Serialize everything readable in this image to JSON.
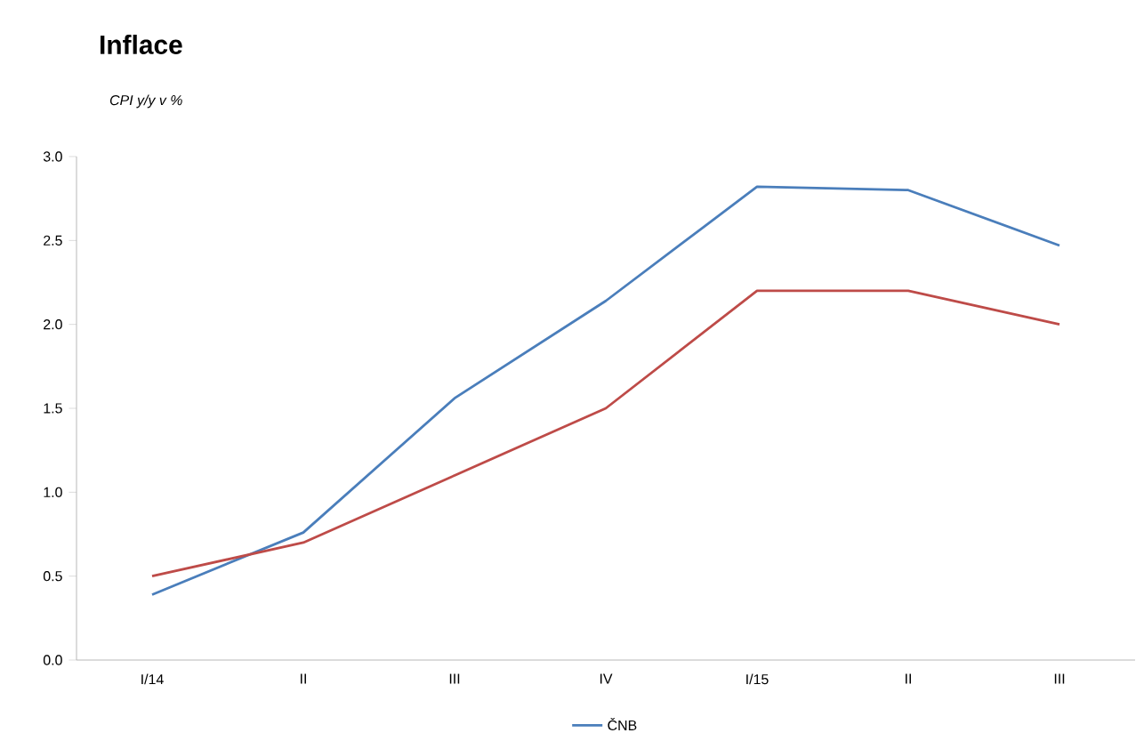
{
  "chart_data": {
    "type": "line",
    "title": "Inflace",
    "subtitle": "CPI y/y v %",
    "categories": [
      "I/14",
      "II",
      "III",
      "IV",
      "I/15",
      "II",
      "III"
    ],
    "series": [
      {
        "name": "ČNB",
        "color": "#4a7ebb",
        "values": [
          0.39,
          0.76,
          1.56,
          2.14,
          2.82,
          2.8,
          2.47
        ]
      },
      {
        "color": "#be4b48",
        "values": [
          0.5,
          0.7,
          1.1,
          1.5,
          2.2,
          2.2,
          2.0
        ]
      }
    ],
    "ylim": [
      0,
      3
    ],
    "yticks": [
      {
        "value": 0,
        "label": "0.0"
      },
      {
        "value": 0.5,
        "label": "0.5"
      },
      {
        "value": 1,
        "label": "1.0"
      },
      {
        "value": 1.5,
        "label": "1.5"
      },
      {
        "value": 2,
        "label": "2.0"
      },
      {
        "value": 2.5,
        "label": "2.5"
      },
      {
        "value": 3,
        "label": "3.0"
      }
    ],
    "grid": false,
    "legend": "bottom",
    "marker": "none",
    "line_style": "solid"
  }
}
